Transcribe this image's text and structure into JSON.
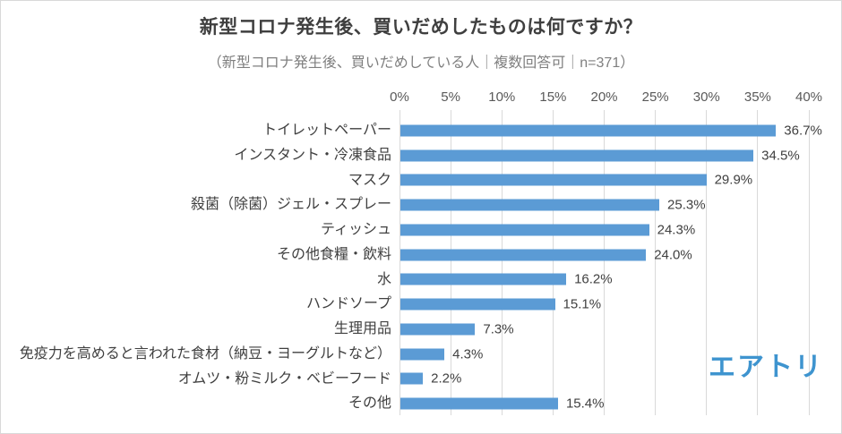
{
  "title": "新型コロナ発生後、買いだめしたものは何ですか？",
  "subtitle": "（新型コロナ発生後、買いだめしている人｜複数回答可｜n=371）",
  "logo_text": "エアトリ",
  "colors": {
    "bar": "#5b9bd5",
    "logo": "#3e94cf",
    "grid": "#d9d9d9",
    "title_text": "#3f3f3f",
    "subtitle_text": "#7f7f7f",
    "axis_text": "#595959",
    "value_text": "#404040"
  },
  "chart_data": {
    "type": "bar",
    "orientation": "horizontal",
    "title": "新型コロナ発生後、買いだめしたものは何ですか？",
    "subtitle": "（新型コロナ発生後、買いだめしている人｜複数回答可｜n=371）",
    "n": 371,
    "categories": [
      "トイレットペーパー",
      "インスタント・冷凍食品",
      "マスク",
      "殺菌（除菌）ジェル・スプレー",
      "ティッシュ",
      "その他食糧・飲料",
      "水",
      "ハンドソープ",
      "生理用品",
      "免疫力を高めると言われた食材（納豆・ヨーグルトなど）",
      "オムツ・粉ミルク・ベビーフード",
      "その他"
    ],
    "values": [
      36.7,
      34.5,
      29.9,
      25.3,
      24.3,
      24.0,
      16.2,
      15.1,
      7.3,
      4.3,
      2.2,
      15.4
    ],
    "value_labels": [
      "36.7%",
      "34.5%",
      "29.9%",
      "25.3%",
      "24.3%",
      "24.0%",
      "16.2%",
      "15.1%",
      "7.3%",
      "4.3%",
      "2.2%",
      "15.4%"
    ],
    "xlabel": "",
    "ylabel": "",
    "xlim": [
      0,
      40
    ],
    "x_ticks": [
      "0%",
      "5%",
      "10%",
      "15%",
      "20%",
      "25%",
      "30%",
      "35%",
      "40%"
    ],
    "grid": true,
    "data_labels": true,
    "legend": "none"
  }
}
